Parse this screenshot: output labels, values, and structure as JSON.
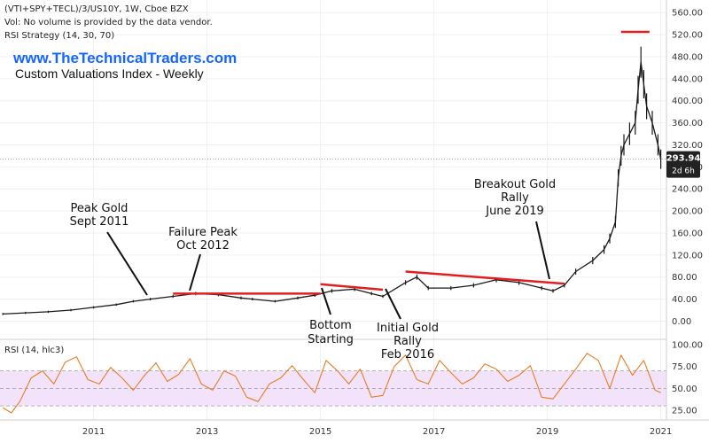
{
  "header": {
    "symbol_line": "(VTI+SPY+TECL)/3/US10Y, 1W, Cboe BZX",
    "volume_note": "Vol: No volume is provided by the data vendor.",
    "indicator_line": "RSI Strategy (14, 30, 70)"
  },
  "branding": {
    "website": "www.TheTechnicalTraders.com",
    "subtitle": "Custom Valuations Index - Weekly"
  },
  "price_badge": {
    "value": "293.94",
    "countdown": "2d 6h"
  },
  "rsi_label": "RSI (14, hlc3)",
  "annotations": {
    "peak_gold": [
      "Peak Gold",
      "Sept 2011"
    ],
    "failure_peak": [
      "Failure Peak",
      "Oct 2012"
    ],
    "bottom_starting": [
      "Bottom",
      "Starting"
    ],
    "initial_gold": [
      "Initial Gold",
      "Rally",
      "Feb 2016"
    ],
    "breakout_gold": [
      "Breakout Gold",
      "Rally",
      "June 2019"
    ]
  },
  "colors": {
    "candle": "#1a1a1a",
    "trendline": "#e31e1e",
    "rsi_line": "#e67e22",
    "rsi_band": "#f3e3fa",
    "website": "#1565ff",
    "badge_bg": "#222222"
  },
  "chart_data": [
    {
      "type": "line",
      "title": "Custom Valuations Index - Weekly",
      "x_unit": "year",
      "y_ticks": [
        0,
        40,
        80,
        120,
        160,
        200,
        240,
        280,
        320,
        360,
        400,
        440,
        480,
        520,
        560
      ],
      "y_tick_labels": [
        "0.00",
        "40.00",
        "80.00",
        "120.00",
        "160.00",
        "200.00",
        "240.00",
        "280.00",
        "320.00",
        "360.00",
        "400.00",
        "440.00",
        "480.00",
        "520.00",
        "560.00"
      ],
      "ylim": [
        -25,
        570
      ],
      "x_ticks": [
        2011,
        2013,
        2015,
        2017,
        2019,
        2021
      ],
      "x_tick_labels": [
        "2011",
        "2013",
        "2015",
        "2017",
        "2019",
        "2021"
      ],
      "xlim": [
        2009.35,
        2021.1
      ],
      "current_value": 293.94,
      "series": [
        {
          "x": [
            2009.4,
            2009.8,
            2010.2,
            2010.6,
            2011.0,
            2011.4,
            2011.7,
            2012.0,
            2012.4,
            2012.8,
            2013.2,
            2013.6,
            2013.8,
            2014.2,
            2014.6,
            2014.9,
            2015.2,
            2015.6,
            2015.9,
            2016.1,
            2016.5,
            2016.7,
            2016.9,
            2017.3,
            2017.7,
            2018.1,
            2018.5,
            2018.9,
            2019.1,
            2019.3,
            2019.5,
            2019.8,
            2020.0,
            2020.1,
            2020.2,
            2020.25,
            2020.3,
            2020.35,
            2020.45,
            2020.55,
            2020.6,
            2020.65,
            2020.7,
            2020.75,
            2020.85,
            2020.95,
            2021.0
          ],
          "values": [
            13,
            15,
            17,
            20,
            25,
            30,
            36,
            40,
            45,
            50,
            48,
            42,
            40,
            36,
            42,
            47,
            55,
            58,
            50,
            45,
            70,
            80,
            60,
            60,
            65,
            75,
            70,
            60,
            55,
            65,
            90,
            110,
            130,
            150,
            180,
            260,
            300,
            320,
            340,
            360,
            420,
            470,
            430,
            390,
            360,
            320,
            293.94
          ]
        }
      ],
      "trendlines": [
        {
          "x": [
            2012.4,
            2015.0
          ],
          "values": [
            50,
            50
          ]
        },
        {
          "x": [
            2015.0,
            2016.1
          ],
          "values": [
            67,
            57
          ]
        },
        {
          "x": [
            2016.5,
            2019.3
          ],
          "values": [
            90,
            68
          ]
        },
        {
          "x": [
            2020.3,
            2020.8
          ],
          "values": [
            525,
            525
          ]
        }
      ]
    },
    {
      "type": "line",
      "title": "RSI (14, hlc3)",
      "y_ticks": [
        25,
        50,
        75,
        100
      ],
      "y_tick_labels": [
        "25.00",
        "50.00",
        "75.00",
        "100.00"
      ],
      "ylim": [
        18,
        103
      ],
      "x_ticks": [
        2011,
        2013,
        2015,
        2017,
        2019,
        2021
      ],
      "xlim": [
        2009.35,
        2021.1
      ],
      "band": [
        30,
        70
      ],
      "series": [
        {
          "x": [
            2009.4,
            2009.55,
            2009.7,
            2009.9,
            2010.1,
            2010.3,
            2010.5,
            2010.7,
            2010.9,
            2011.1,
            2011.3,
            2011.5,
            2011.7,
            2011.9,
            2012.1,
            2012.3,
            2012.5,
            2012.7,
            2012.9,
            2013.1,
            2013.3,
            2013.5,
            2013.7,
            2013.9,
            2014.1,
            2014.3,
            2014.5,
            2014.7,
            2014.9,
            2015.1,
            2015.3,
            2015.5,
            2015.7,
            2015.9,
            2016.1,
            2016.3,
            2016.5,
            2016.7,
            2016.9,
            2017.1,
            2017.3,
            2017.5,
            2017.7,
            2017.9,
            2018.1,
            2018.3,
            2018.5,
            2018.7,
            2018.9,
            2019.1,
            2019.3,
            2019.5,
            2019.7,
            2019.9,
            2020.1,
            2020.3,
            2020.5,
            2020.7,
            2020.9,
            2021.0
          ],
          "values": [
            28,
            22,
            35,
            62,
            70,
            55,
            80,
            86,
            60,
            55,
            74,
            62,
            48,
            65,
            79,
            58,
            66,
            84,
            55,
            48,
            70,
            64,
            40,
            35,
            55,
            62,
            76,
            60,
            45,
            82,
            70,
            55,
            72,
            40,
            42,
            75,
            88,
            60,
            55,
            82,
            68,
            55,
            62,
            78,
            72,
            58,
            65,
            76,
            40,
            38,
            55,
            72,
            90,
            82,
            50,
            88,
            65,
            82,
            48,
            45
          ]
        }
      ]
    }
  ]
}
